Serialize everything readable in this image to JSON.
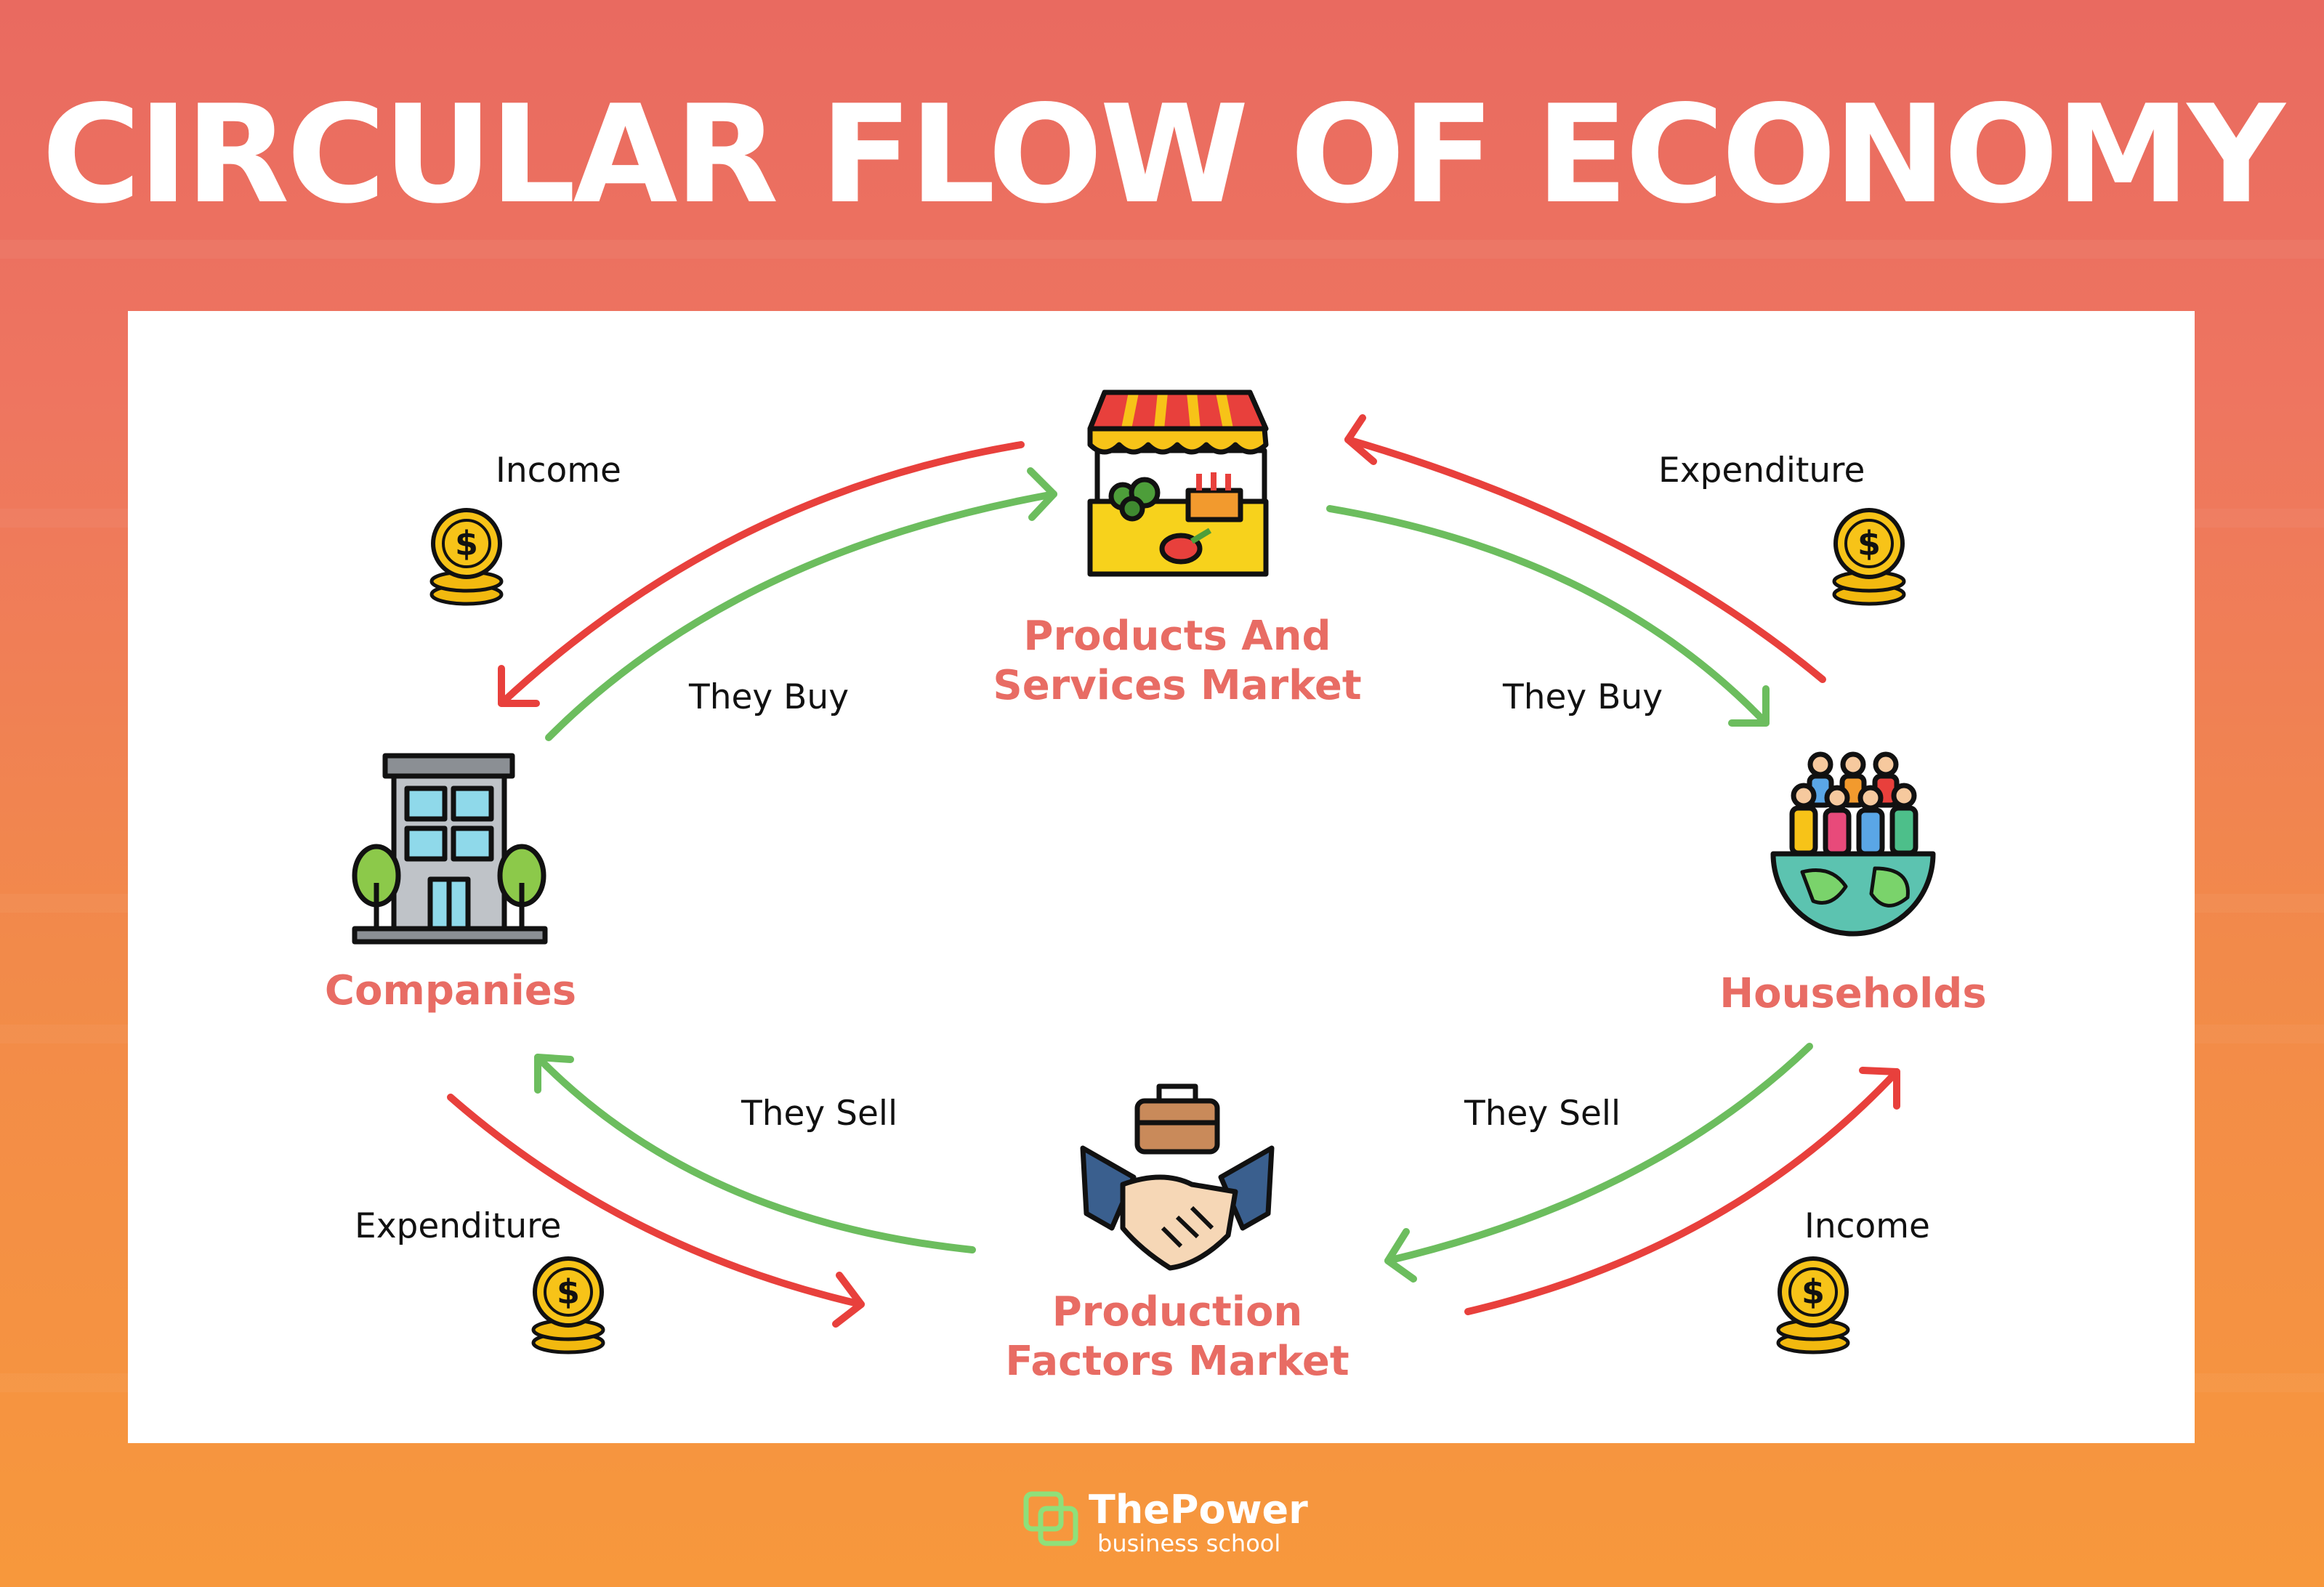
{
  "title": "CIRCULAR FLOW OF ECONOMY",
  "nodes": {
    "market_products": "Products And\nServices Market",
    "companies": "Companies",
    "households": "Households",
    "market_factors": "Production\nFactors Market"
  },
  "flow_labels": {
    "income_top_left": "Income",
    "expenditure_top_right": "Expenditure",
    "they_buy_left": "They Buy",
    "they_buy_right": "They Buy",
    "they_sell_left": "They Sell",
    "they_sell_right": "They Sell",
    "expenditure_bottom_left": "Expenditure",
    "income_bottom_right": "Income"
  },
  "colors": {
    "money_flow": "#e8403c",
    "goods_flow": "#6cbd5e",
    "node_title": "#e86c64"
  },
  "logo": {
    "name": "ThePower",
    "tagline": "business school"
  }
}
